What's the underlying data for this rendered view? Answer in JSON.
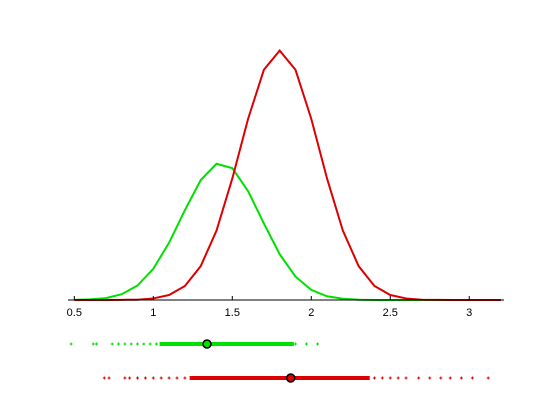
{
  "chart_data": {
    "type": "density",
    "x": [
      0.5,
      0.6,
      0.7,
      0.8,
      0.9,
      1.0,
      1.1,
      1.2,
      1.3,
      1.4,
      1.5,
      1.6,
      1.7,
      1.8,
      1.9,
      2.0,
      2.1,
      2.2,
      2.3,
      2.4,
      2.5,
      2.6,
      2.7,
      2.8,
      2.9,
      3.0,
      3.1,
      3.2
    ],
    "series": [
      {
        "color": "#00e000",
        "values": [
          0.001,
          0.004,
          0.012,
          0.037,
          0.093,
          0.2,
          0.368,
          0.576,
          0.769,
          0.874,
          0.846,
          0.698,
          0.491,
          0.294,
          0.15,
          0.065,
          0.024,
          0.008,
          0.002,
          0,
          0,
          0,
          0,
          0,
          0,
          0,
          0,
          0
        ],
        "rug": {
          "points": [
            0.48,
            0.62,
            0.64,
            0.74,
            0.78,
            0.82,
            0.86,
            0.9,
            0.94,
            0.98,
            1.02,
            1.05,
            1.1,
            1.15,
            1.2,
            1.25,
            1.3,
            1.4,
            1.5,
            1.6,
            1.7,
            1.8,
            1.9,
            1.97,
            2.04
          ],
          "range": [
            1.04,
            1.89
          ],
          "center": 1.34
        }
      },
      {
        "color": "#dd0000",
        "values": [
          0,
          0,
          0,
          0.001,
          0.002,
          0.01,
          0.032,
          0.09,
          0.217,
          0.445,
          0.779,
          1.162,
          1.477,
          1.6,
          1.477,
          1.162,
          0.779,
          0.445,
          0.217,
          0.09,
          0.032,
          0.01,
          0.002,
          0.001,
          0,
          0,
          0,
          0
        ],
        "rug": {
          "points": [
            0.69,
            0.72,
            0.82,
            0.85,
            0.9,
            0.95,
            1.0,
            1.05,
            1.1,
            1.15,
            1.2,
            1.3,
            1.4,
            1.5,
            1.6,
            1.7,
            1.8,
            1.9,
            2.0,
            2.1,
            2.2,
            2.3,
            2.4,
            2.45,
            2.5,
            2.55,
            2.6,
            2.68,
            2.75,
            2.82,
            2.88,
            2.95,
            3.02,
            3.12
          ],
          "range": [
            1.23,
            2.37
          ],
          "center": 1.87
        }
      }
    ],
    "xlim": [
      0.46,
      3.22
    ],
    "ylim": [
      0,
      1.7
    ],
    "xticks": [
      0.5,
      1,
      1.5,
      2,
      2.5,
      3
    ]
  }
}
